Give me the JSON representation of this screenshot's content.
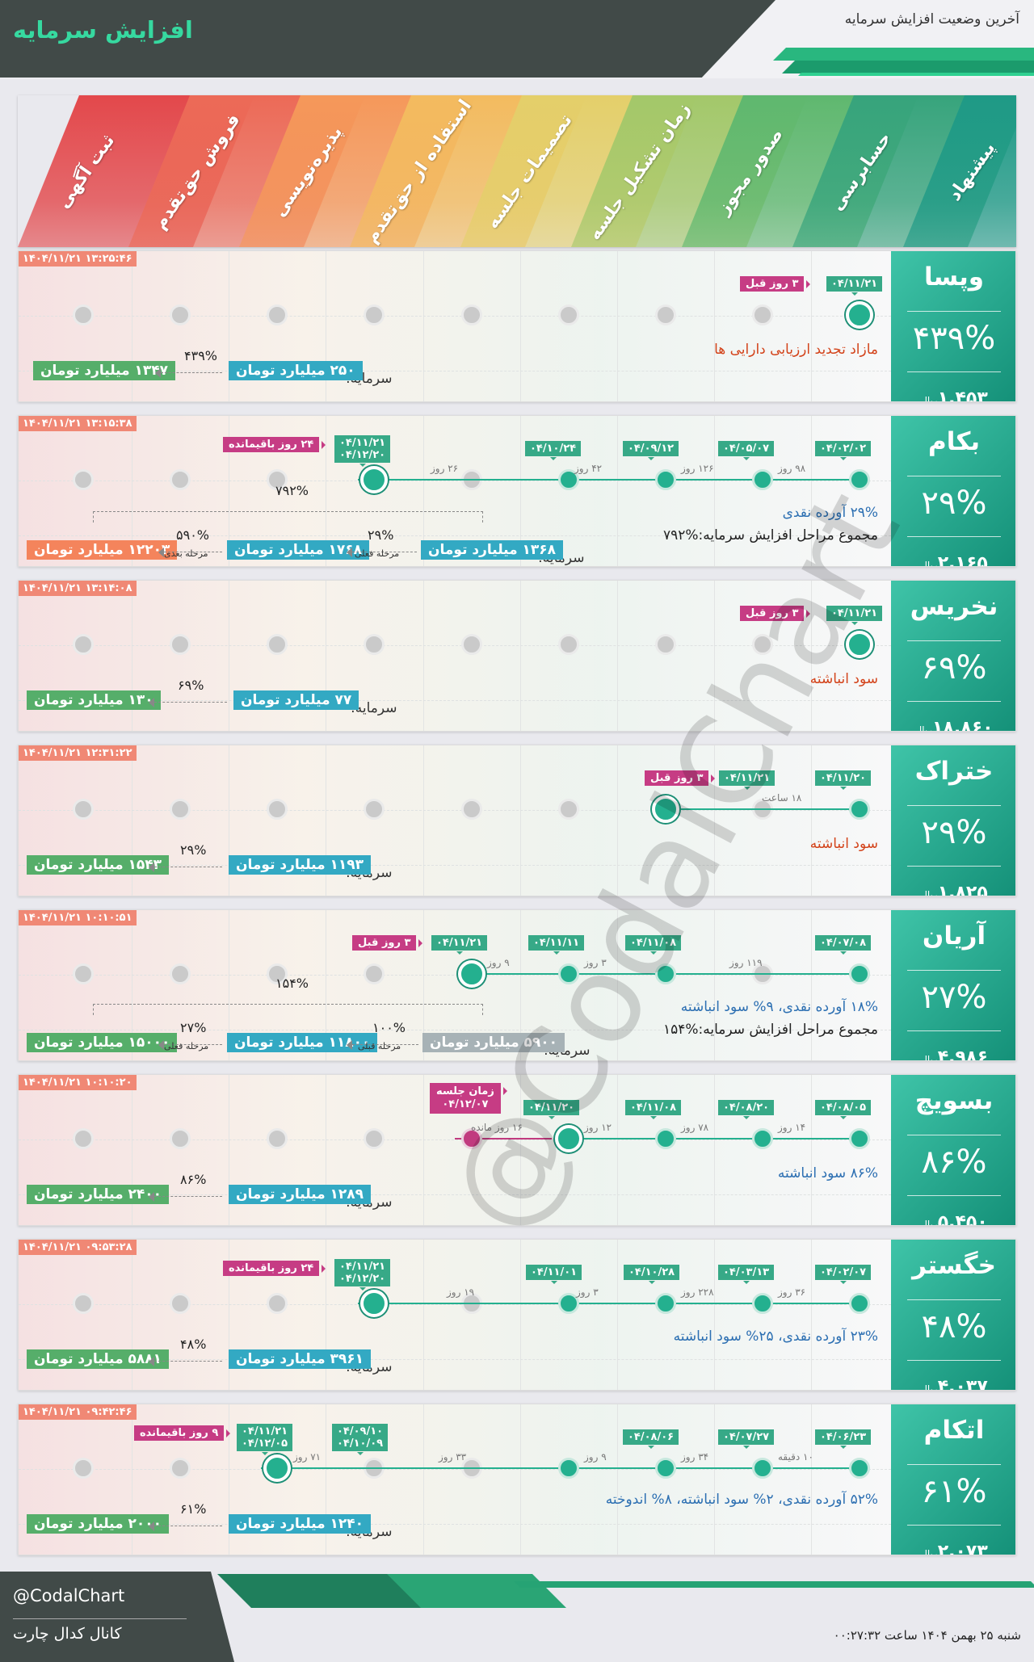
{
  "header": {
    "title": "افزایش سرمایه",
    "subtitle": "آخرین وضعیت افزایش سرمایه"
  },
  "stages": [
    "ثبت آگهی",
    "فروش حق‌تقدم",
    "پذیره‌نویسی",
    "استفاده از حق‌تقدم",
    "تصمیمات جلسه",
    "زمان تشکیل جلسه",
    "صدور مجوز",
    "حسابرسی",
    "پیشنهاد"
  ],
  "stage_colors": [
    "#e3484b",
    "#ec6a57",
    "#f5985a",
    "#f3bb5f",
    "#e4cf6a",
    "#a3c86a",
    "#5fb86f",
    "#37a47c",
    "#1f9a86"
  ],
  "capital_label": "سرمایه:",
  "watermark": "@CodalChart",
  "cards": [
    {
      "symbol": "وپسا",
      "pct": "۴۳۹%",
      "price": "۱,۴۵۳",
      "unit": "ریال",
      "timestamp": "۱۴۰۴/۱۱/۲۱ ۱۳:۲۵:۴۶",
      "dates": [
        "۰۴/۱۱/۲۱"
      ],
      "flag": "۳ روز قبل",
      "description": "مازاد تجدید ارزیابی دارایی ها",
      "capital_from": "۲۵۰ میلیارد تومان",
      "capital_to": "۱۳۴۷ میلیارد تومان",
      "cap_pct": "۴۳۹%"
    },
    {
      "symbol": "بکام",
      "pct": "۲۹%",
      "price": "۲,۱۶۵",
      "unit": "ریال",
      "timestamp": "۱۴۰۴/۱۱/۲۱ ۱۳:۱۵:۳۸",
      "dates": [
        "۰۴/۰۲/۰۲",
        "۰۴/۰۵/۰۷",
        "۰۴/۰۹/۱۲",
        "۰۴/۱۰/۲۴",
        "۰۴/۱۱/۲۱",
        "۰۴/۱۲/۲۰"
      ],
      "durations": [
        "۹۸ روز",
        "۱۲۶ روز",
        "۴۲ روز",
        "۲۶ روز"
      ],
      "flag": "۲۴ روز باقیمانده",
      "description": "۲۹% آورده نقدی",
      "summary": "مجموع مراحل افزایش سرمایه:%۷۹۲",
      "capital_from": "۱۳۶۸ میلیارد تومان",
      "capital_mid": "۱۷۶۸ میلیارد تومان",
      "capital_to": "۱۲۲۰۳ میلیارد تومان",
      "cap_pct": "۲۹%",
      "cap_pct2": "۵۹۰%",
      "cap_total": "۷۹۲%",
      "phase1": "مرحله فعلی",
      "phase2": "مرحله بعدی"
    },
    {
      "symbol": "نخریس",
      "pct": "۶۹%",
      "price": "۱۸,۸۶۰",
      "unit": "ریال",
      "timestamp": "۱۴۰۴/۱۱/۲۱ ۱۳:۱۴:۰۸",
      "dates": [
        "۰۴/۱۱/۲۱"
      ],
      "flag": "۳ روز قبل",
      "description": "سود انباشته",
      "capital_from": "۷۷ میلیارد تومان",
      "capital_to": "۱۳۰ میلیارد تومان",
      "cap_pct": "۶۹%"
    },
    {
      "symbol": "ختراک",
      "pct": "۲۹%",
      "price": "۱,۸۲۵",
      "unit": "ریال",
      "timestamp": "۱۴۰۴/۱۱/۲۱ ۱۲:۳۱:۲۲",
      "dates": [
        "۰۴/۱۱/۲۰",
        "۰۴/۱۱/۲۱"
      ],
      "durations": [
        "۱۸ ساعت"
      ],
      "flag": "۳ روز قبل",
      "description": "سود انباشته",
      "capital_from": "۱۱۹۳ میلیارد تومان",
      "capital_to": "۱۵۴۳ میلیارد تومان",
      "cap_pct": "۲۹%"
    },
    {
      "symbol": "آریان",
      "pct": "۲۷%",
      "price": "۴,۹۸۶",
      "unit": "ریال",
      "timestamp": "۱۴۰۴/۱۱/۲۱ ۱۰:۱۰:۵۱",
      "dates": [
        "۰۴/۰۷/۰۸",
        "۰۴/۱۱/۰۸",
        "۰۴/۱۱/۱۱",
        "۰۴/۱۱/۲۱"
      ],
      "durations": [
        "۱۱۹ روز",
        "۳ روز",
        "۹ روز"
      ],
      "flag": "۳ روز قبل",
      "description": "۱۸% آورده نقدی، ۹% سود انباشته",
      "summary": "مجموع مراحل افزایش سرمایه:%۱۵۴",
      "capital_from": "۵۹۰۰ میلیارد تومان",
      "capital_mid": "۱۱۸۰۰ میلیارد تومان",
      "capital_to": "۱۵۰۰۰ میلیارد تومان",
      "cap_pct": "۱۰۰%",
      "cap_pct2": "۲۷%",
      "cap_total": "۱۵۴%",
      "phase1": "مرحله قبلی",
      "phase2": "مرحله فعلی"
    },
    {
      "symbol": "بسویچ",
      "pct": "۸۶%",
      "price": "۵,۴۵۰",
      "unit": "ریال",
      "timestamp": "۱۴۰۴/۱۱/۲۱ ۱۰:۱۰:۲۰",
      "dates": [
        "۰۴/۰۸/۰۵",
        "۰۴/۰۸/۲۰",
        "۰۴/۱۱/۰۸",
        "۰۴/۱۱/۲۰"
      ],
      "durations": [
        "۱۴ روز",
        "۷۸ روز",
        "۱۲ روز",
        "۱۶ روز مانده"
      ],
      "meeting": "زمان جلسه",
      "meeting_date": "۰۴/۱۲/۰۷",
      "description": "۸۶% سود انباشته",
      "capital_from": "۱۲۸۹ میلیارد تومان",
      "capital_to": "۲۴۰۰ میلیارد تومان",
      "cap_pct": "۸۶%"
    },
    {
      "symbol": "خگستر",
      "pct": "۴۸%",
      "price": "۴,۰۳۷",
      "unit": "ریال",
      "timestamp": "۱۴۰۴/۱۱/۲۱ ۰۹:۵۳:۲۸",
      "dates": [
        "۰۴/۰۲/۰۷",
        "۰۴/۰۳/۱۳",
        "۰۴/۱۰/۲۸",
        "۰۴/۱۱/۰۱",
        "۰۴/۱۱/۲۱",
        "۰۴/۱۲/۲۰"
      ],
      "durations": [
        "۳۶ روز",
        "۲۲۸ روز",
        "۳ روز",
        "۱۹ روز"
      ],
      "flag": "۲۴ روز باقیمانده",
      "description": "۲۳% آورده نقدی، ۲۵% سود انباشته",
      "capital_from": "۳۹۶۱ میلیارد تومان",
      "capital_to": "۵۸۸۱ میلیارد تومان",
      "cap_pct": "۴۸%"
    },
    {
      "symbol": "اتکام",
      "pct": "۶۱%",
      "price": "۲,۰۷۳",
      "unit": "ریال",
      "timestamp": "۱۴۰۴/۱۱/۲۱ ۰۹:۴۲:۴۶",
      "dates": [
        "۰۴/۰۶/۲۳",
        "۰۴/۰۶/۲۳",
        "۰۴/۰۷/۲۷",
        "۰۴/۰۸/۰۶",
        "۰۴/۰۹/۱۰",
        "۰۴/۱۰/۰۹",
        "۰۴/۱۱/۲۱",
        "۰۴/۱۲/۰۵"
      ],
      "durations": [
        "۱۰ دقیقه",
        "۳۴ روز",
        "۹ روز",
        "۳۳ روز",
        "۷۱ روز"
      ],
      "flag": "۹ روز باقیمانده",
      "description": "۵۲% آورده نقدی، ۲% سود انباشته، ۸% اندوخته",
      "capital_from": "۱۲۴۰ میلیارد تومان",
      "capital_to": "۲۰۰۰ میلیارد تومان",
      "cap_pct": "۶۱%"
    }
  ],
  "footer": {
    "handle": "@CodalChart",
    "channel": "کانال کدال چارت",
    "datetime": "شنبه ۲۵ بهمن ۱۴۰۴ ساعت ۰۰:۲۷:۳۲"
  }
}
